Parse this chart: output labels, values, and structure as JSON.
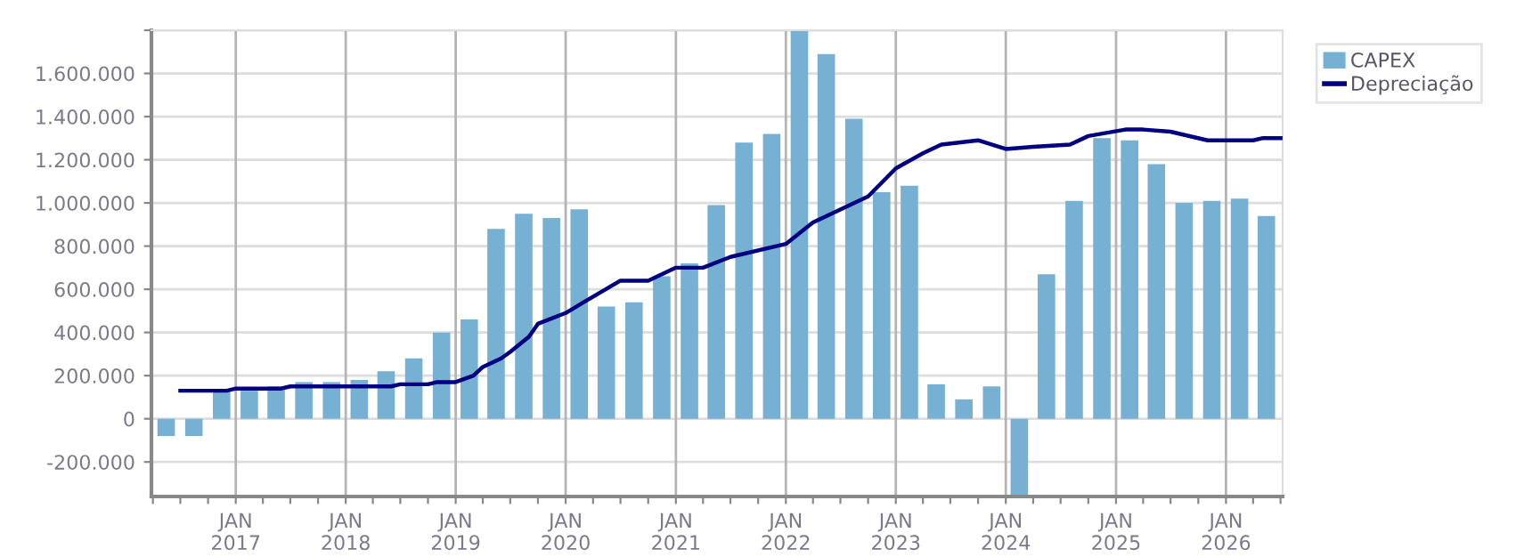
{
  "chart_data": {
    "type": "bar",
    "x": [
      "2016-05-15",
      "2016-08-15",
      "2016-11-15",
      "2017-02-15",
      "2017-05-15",
      "2017-08-15",
      "2017-11-15",
      "2018-02-15",
      "2018-05-15",
      "2018-08-15",
      "2018-11-15",
      "2019-02-15",
      "2019-05-15",
      "2019-08-15",
      "2019-11-15",
      "2020-02-15",
      "2020-05-15",
      "2020-08-15",
      "2020-11-15",
      "2021-02-15",
      "2021-05-15",
      "2021-08-15",
      "2021-11-15",
      "2022-02-15",
      "2022-05-15",
      "2022-08-15",
      "2022-11-15",
      "2023-02-15",
      "2023-05-15",
      "2023-08-15",
      "2023-11-15",
      "2024-02-15",
      "2024-05-15",
      "2024-08-15",
      "2024-11-15",
      "2025-02-15",
      "2025-05-15",
      "2025-08-15",
      "2025-11-15",
      "2026-02-15",
      "2026-05-15"
    ],
    "series": [
      {
        "name": "CAPEX",
        "color": "#76b0d2",
        "values": [
          -80000,
          -80000,
          130000,
          130000,
          150000,
          170000,
          170000,
          180000,
          220000,
          280000,
          400000,
          460000,
          880000,
          950000,
          930000,
          970000,
          520000,
          540000,
          660000,
          720000,
          990000,
          1280000,
          1320000,
          1800000,
          1690000,
          1390000,
          1050000,
          1080000,
          160000,
          90000,
          150000,
          -360000,
          670000,
          1010000,
          1300000,
          1290000,
          1180000,
          1000000,
          1010000,
          1020000,
          940000
        ]
      },
      {
        "name": "Depreciação",
        "type": "line",
        "color": "#000080",
        "x": [
          "2016-07",
          "2016-12",
          "2017-01",
          "2017-06",
          "2017-07",
          "2018-06",
          "2018-07",
          "2018-10",
          "2018-11",
          "2019-01",
          "2019-03",
          "2019-04",
          "2019-06",
          "2019-07",
          "2019-09",
          "2019-10",
          "2020-01",
          "2020-03",
          "2020-07",
          "2020-10",
          "2021-01",
          "2021-04",
          "2021-07",
          "2022-01",
          "2022-04",
          "2022-10",
          "2023-01",
          "2023-04",
          "2023-06",
          "2023-10",
          "2024-01",
          "2024-04",
          "2024-08",
          "2024-10",
          "2025-02",
          "2025-04",
          "2025-07",
          "2025-11",
          "2026-04",
          "2026-05",
          "2026-07"
        ],
        "values": [
          130000,
          130000,
          140000,
          140000,
          150000,
          150000,
          160000,
          160000,
          170000,
          170000,
          200000,
          240000,
          280000,
          310000,
          380000,
          440000,
          490000,
          540000,
          640000,
          640000,
          700000,
          700000,
          750000,
          810000,
          910000,
          1030000,
          1160000,
          1230000,
          1270000,
          1290000,
          1250000,
          1260000,
          1270000,
          1310000,
          1340000,
          1340000,
          1330000,
          1290000,
          1290000,
          1300000,
          1300000
        ]
      }
    ],
    "xlim": [
      "2016-03-27",
      "2026-07-08"
    ],
    "xticks": [
      {
        "value": "2016-04-01",
        "label": null
      },
      {
        "value": "2016-07-01",
        "label": null
      },
      {
        "value": "2016-10-01",
        "label": null
      },
      {
        "value": "2017-01-01",
        "label": "JAN\n2017"
      },
      {
        "value": "2017-04-01",
        "label": null
      },
      {
        "value": "2017-07-01",
        "label": null
      },
      {
        "value": "2017-10-01",
        "label": null
      },
      {
        "value": "2018-01-01",
        "label": "JAN\n2018"
      },
      {
        "value": "2018-04-01",
        "label": null
      },
      {
        "value": "2018-07-01",
        "label": null
      },
      {
        "value": "2018-10-01",
        "label": null
      },
      {
        "value": "2019-01-01",
        "label": "JAN\n2019"
      },
      {
        "value": "2019-04-01",
        "label": null
      },
      {
        "value": "2019-07-01",
        "label": null
      },
      {
        "value": "2019-10-01",
        "label": null
      },
      {
        "value": "2020-01-01",
        "label": "JAN\n2020"
      },
      {
        "value": "2020-04-01",
        "label": null
      },
      {
        "value": "2020-07-01",
        "label": null
      },
      {
        "value": "2020-10-01",
        "label": null
      },
      {
        "value": "2021-01-01",
        "label": "JAN\n2021"
      },
      {
        "value": "2021-04-01",
        "label": null
      },
      {
        "value": "2021-07-01",
        "label": null
      },
      {
        "value": "2021-10-01",
        "label": null
      },
      {
        "value": "2022-01-01",
        "label": "JAN\n2022"
      },
      {
        "value": "2022-04-01",
        "label": null
      },
      {
        "value": "2022-07-01",
        "label": null
      },
      {
        "value": "2022-10-01",
        "label": null
      },
      {
        "value": "2023-01-01",
        "label": "JAN\n2023"
      },
      {
        "value": "2023-04-01",
        "label": null
      },
      {
        "value": "2023-07-01",
        "label": null
      },
      {
        "value": "2023-10-01",
        "label": null
      },
      {
        "value": "2024-01-01",
        "label": "JAN\n2024"
      },
      {
        "value": "2024-04-01",
        "label": null
      },
      {
        "value": "2024-07-01",
        "label": null
      },
      {
        "value": "2024-10-01",
        "label": null
      },
      {
        "value": "2025-01-01",
        "label": "JAN\n2025"
      },
      {
        "value": "2025-04-01",
        "label": null
      },
      {
        "value": "2025-07-01",
        "label": null
      },
      {
        "value": "2025-10-01",
        "label": null
      },
      {
        "value": "2026-01-01",
        "label": "JAN\n2026"
      },
      {
        "value": "2026-04-01",
        "label": null
      },
      {
        "value": "2026-07-01",
        "label": null
      }
    ],
    "ylim": [
      -360000,
      1800000
    ],
    "yticks": [
      {
        "value": -200000,
        "label": "-200.000"
      },
      0,
      {
        "value": 200000,
        "label": "200.000"
      },
      {
        "value": 400000,
        "label": "400.000"
      },
      {
        "value": 600000,
        "label": "600.000"
      },
      {
        "value": 800000,
        "label": "800.000"
      },
      {
        "value": 1000000,
        "label": "1.000.000"
      },
      {
        "value": 1200000,
        "label": "1.200.000"
      },
      {
        "value": 1400000,
        "label": "1.400.000"
      },
      {
        "value": 1600000,
        "label": "1.600.000"
      },
      {
        "value": 1800000,
        "label": null
      }
    ],
    "grid": true,
    "legend": "top right",
    "marker": "none",
    "line_style": "solid"
  }
}
